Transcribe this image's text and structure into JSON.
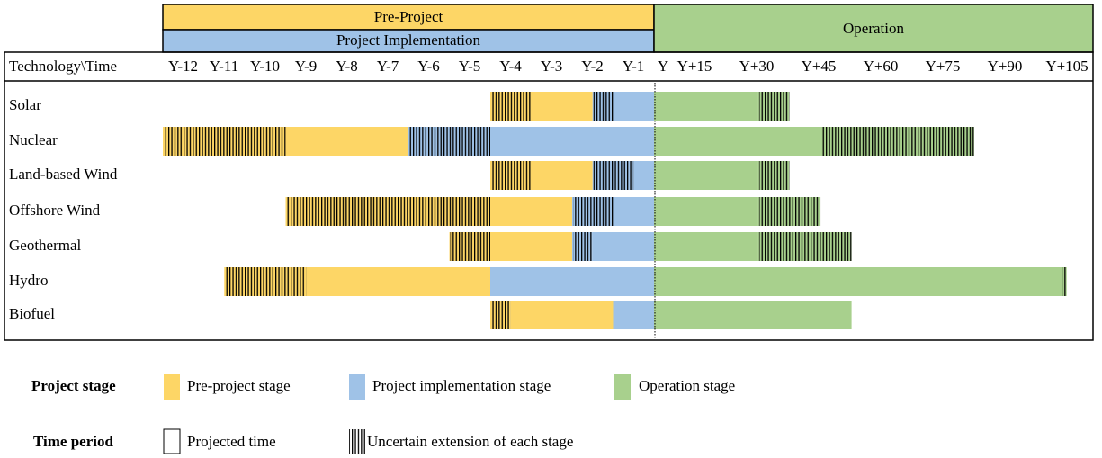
{
  "header": {
    "pre_project": "Pre-Project",
    "implementation": "Project Implementation",
    "operation": "Operation"
  },
  "time_header": {
    "corner": "Technology\\Time",
    "before": [
      "Y-12",
      "Y-11",
      "Y-10",
      "Y-9",
      "Y-8",
      "Y-7",
      "Y-6",
      "Y-5",
      "Y-4",
      "Y-3",
      "Y-2",
      "Y-1"
    ],
    "after": [
      "Y",
      "Y+15",
      "Y+30",
      "Y+45",
      "Y+60",
      "Y+75",
      "Y+90",
      "Y+105"
    ]
  },
  "colors": {
    "pre_project": "#fdd666",
    "implementation": "#9fc2e7",
    "operation": "#a8d08d"
  },
  "rows": [
    {
      "label": "Solar",
      "pre_project": [
        {
          "start": -4,
          "end": -3,
          "uncertain": true
        },
        {
          "start": -3,
          "end": -1.5,
          "uncertain": false
        }
      ],
      "implementation": [
        {
          "start": -1.5,
          "end": -1,
          "uncertain": true
        },
        {
          "start": -1,
          "end": 0,
          "uncertain": false
        }
      ],
      "operation": [
        {
          "start": 0,
          "end": 28.5,
          "uncertain": false
        },
        {
          "start": 28.5,
          "end": 37,
          "uncertain": true
        }
      ]
    },
    {
      "label": "Nuclear",
      "pre_project": [
        {
          "start": -12,
          "end": -9,
          "uncertain": true
        },
        {
          "start": -9,
          "end": -6,
          "uncertain": false
        }
      ],
      "implementation": [
        {
          "start": -6,
          "end": -4,
          "uncertain": true
        },
        {
          "start": -4,
          "end": 0,
          "uncertain": false
        }
      ],
      "operation": [
        {
          "start": 0,
          "end": 45.5,
          "uncertain": false
        },
        {
          "start": 45.5,
          "end": 87.5,
          "uncertain": true
        }
      ]
    },
    {
      "label": "Land-based Wind",
      "pre_project": [
        {
          "start": -4,
          "end": -3,
          "uncertain": true
        },
        {
          "start": -3,
          "end": -1.5,
          "uncertain": false
        }
      ],
      "implementation": [
        {
          "start": -1.5,
          "end": -0.5,
          "uncertain": true
        },
        {
          "start": -0.5,
          "end": 0,
          "uncertain": false
        }
      ],
      "operation": [
        {
          "start": 0,
          "end": 28.5,
          "uncertain": false
        },
        {
          "start": 28.5,
          "end": 37,
          "uncertain": true
        }
      ]
    },
    {
      "label": "Offshore Wind",
      "pre_project": [
        {
          "start": -9,
          "end": -4,
          "uncertain": true
        },
        {
          "start": -4,
          "end": -2,
          "uncertain": false
        }
      ],
      "implementation": [
        {
          "start": -2,
          "end": -1,
          "uncertain": true
        },
        {
          "start": -1,
          "end": 0,
          "uncertain": false
        }
      ],
      "operation": [
        {
          "start": 0,
          "end": 28.5,
          "uncertain": false
        },
        {
          "start": 28.5,
          "end": 45.5,
          "uncertain": true
        }
      ]
    },
    {
      "label": "Geothermal",
      "pre_project": [
        {
          "start": -5,
          "end": -4,
          "uncertain": true
        },
        {
          "start": -4,
          "end": -2,
          "uncertain": false
        }
      ],
      "implementation": [
        {
          "start": -2,
          "end": -1.5,
          "uncertain": true
        },
        {
          "start": -1.5,
          "end": 0,
          "uncertain": false
        }
      ],
      "operation": [
        {
          "start": 0,
          "end": 28.5,
          "uncertain": false
        },
        {
          "start": 28.5,
          "end": 54,
          "uncertain": true
        }
      ]
    },
    {
      "label": "Hydro",
      "pre_project": [
        {
          "start": -10.5,
          "end": -8.5,
          "uncertain": true
        },
        {
          "start": -8.5,
          "end": -4,
          "uncertain": false
        }
      ],
      "implementation": [
        {
          "start": -4,
          "end": 0,
          "uncertain": false
        }
      ],
      "operation": [
        {
          "start": 0,
          "end": 111.4,
          "uncertain": false
        },
        {
          "start": 111.4,
          "end": 112.8,
          "uncertain": true
        }
      ]
    },
    {
      "label": "Biofuel",
      "pre_project": [
        {
          "start": -4,
          "end": -3.5,
          "uncertain": true
        },
        {
          "start": -3.5,
          "end": -1,
          "uncertain": false
        }
      ],
      "implementation": [
        {
          "start": -1,
          "end": 0,
          "uncertain": false
        }
      ],
      "operation": [
        {
          "start": 0,
          "end": 54,
          "uncertain": false
        }
      ]
    }
  ],
  "legend": {
    "stage_title": "Project stage",
    "pre_project": "Pre-project stage",
    "implementation": "Project implementation stage",
    "operation": "Operation stage",
    "period_title": "Time period",
    "projected": "Projected time",
    "uncertain": "Uncertain extension of each stage"
  }
}
